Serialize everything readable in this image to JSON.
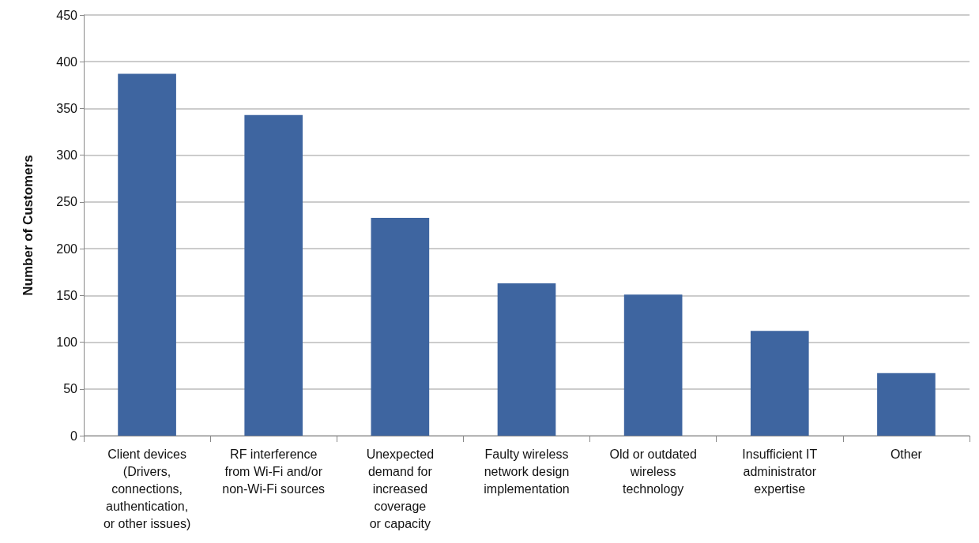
{
  "chart_data": {
    "type": "bar",
    "ylabel": "Number of Customers",
    "categories": [
      "Client devices\n(Drivers,\nconnections,\nauthentication,\nor other issues)",
      "RF interference\nfrom Wi-Fi and/or\nnon-Wi-Fi sources",
      "Unexpected\ndemand for\nincreased\ncoverage\nor capacity",
      "Faulty wireless\nnetwork design\nimplementation",
      "Old or outdated\nwireless\ntechnology",
      "Insufficient IT\nadministrator\nexpertise",
      "Other"
    ],
    "values": [
      387,
      343,
      233,
      163,
      151,
      112,
      67
    ],
    "color": "#3e65a0",
    "ylim": [
      0,
      450
    ],
    "yticks": [
      0,
      50,
      100,
      150,
      200,
      250,
      300,
      350,
      400,
      450
    ],
    "grid": "y"
  }
}
